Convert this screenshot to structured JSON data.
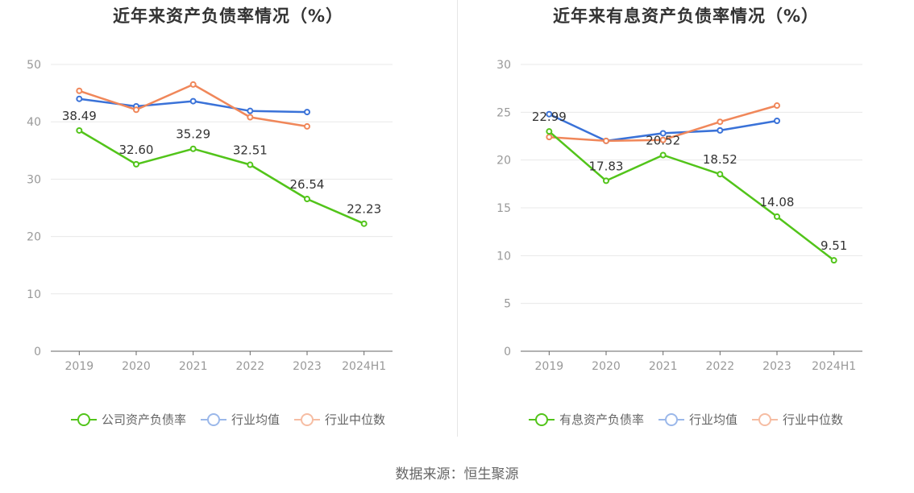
{
  "charts": [
    {
      "title": "近年来资产负债率情况（%）",
      "legend": [
        "公司资产负债率",
        "行业均值",
        "行业中位数"
      ]
    },
    {
      "title": "近年来有息资产负债率情况（%）",
      "legend": [
        "有息资产负债率",
        "行业均值",
        "行业中位数"
      ]
    }
  ],
  "source": "数据来源：恒生聚源",
  "colors": {
    "company": "#52c41a",
    "mean": "#3a72d8",
    "median": "#f0875a",
    "axis": "#666666",
    "grid": "#e8e8e8",
    "tick": "#999999"
  },
  "chart_data": [
    {
      "type": "line",
      "title": "近年来资产负债率情况（%）",
      "categories": [
        "2019",
        "2020",
        "2021",
        "2022",
        "2023",
        "2024H1"
      ],
      "ylim": [
        0,
        50
      ],
      "yticks": [
        0,
        10,
        20,
        30,
        40,
        50
      ],
      "grid": true,
      "legend_position": "bottom",
      "series": [
        {
          "name": "公司资产负债率",
          "color": "#52c41a",
          "labels": true,
          "values": [
            38.49,
            32.6,
            35.29,
            32.51,
            26.54,
            22.23
          ]
        },
        {
          "name": "行业均值",
          "color": "#3a72d8",
          "labels": false,
          "values": [
            44.0,
            42.7,
            43.6,
            41.9,
            41.7,
            null
          ]
        },
        {
          "name": "行业中位数",
          "color": "#f0875a",
          "labels": false,
          "values": [
            45.4,
            42.1,
            46.5,
            40.8,
            39.2,
            null
          ]
        }
      ]
    },
    {
      "type": "line",
      "title": "近年来有息资产负债率情况（%）",
      "categories": [
        "2019",
        "2020",
        "2021",
        "2022",
        "2023",
        "2024H1"
      ],
      "ylim": [
        0,
        30
      ],
      "yticks": [
        0,
        5,
        10,
        15,
        20,
        25,
        30
      ],
      "grid": true,
      "legend_position": "bottom",
      "series": [
        {
          "name": "有息资产负债率",
          "color": "#52c41a",
          "labels": true,
          "values": [
            22.99,
            17.83,
            20.52,
            18.52,
            14.08,
            9.51
          ]
        },
        {
          "name": "行业均值",
          "color": "#3a72d8",
          "labels": false,
          "values": [
            24.8,
            22.0,
            22.8,
            23.1,
            24.1,
            null
          ]
        },
        {
          "name": "行业中位数",
          "color": "#f0875a",
          "labels": false,
          "values": [
            22.4,
            22.0,
            22.1,
            24.0,
            25.7,
            null
          ]
        }
      ]
    }
  ]
}
